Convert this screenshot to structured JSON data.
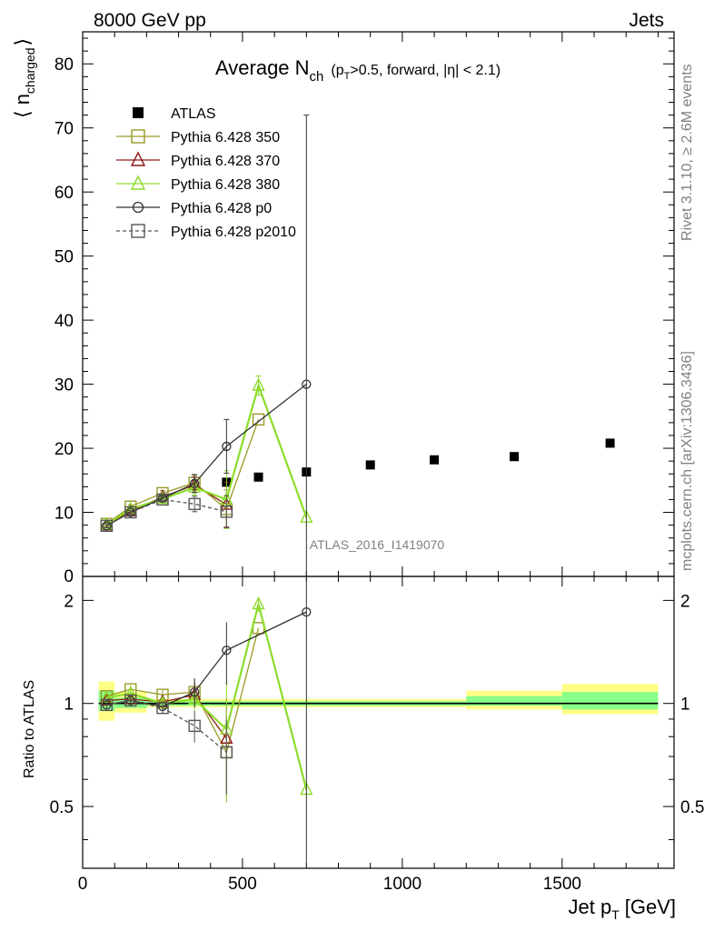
{
  "header": {
    "left": "8000 GeV pp",
    "right": "Jets",
    "side_top": "Rivet 3.1.10, ≥ 2.6M events",
    "side_bottom": "mcplots.cern.ch [arXiv:1306.3436]"
  },
  "chart_data": {
    "type": "scatter",
    "title": "Average N",
    "title_sub": "ch",
    "title_suffix": "(p",
    "title_suffix_sub": "T",
    "title_suffix_rest": ">0.5, forward, |η| < 2.1)",
    "analysis_label": "ATLAS_2016_I1419070",
    "ylabel_main": "⟨ n",
    "ylabel_main_sub": "charged",
    "ylabel_main_close": "⟩",
    "ylabel_ratio": "Ratio to ATLAS",
    "xlabel": "Jet p",
    "xlabel_sub": "T",
    "xlabel_unit": "[GeV]",
    "xlim": [
      0,
      1850
    ],
    "ylim_main": [
      0,
      85
    ],
    "ylim_ratio": [
      0.33,
      2.35
    ],
    "x_ticks": [
      "0",
      "500",
      "1000",
      "1500"
    ],
    "y_ticks_main": [
      "0",
      "10",
      "20",
      "30",
      "40",
      "50",
      "60",
      "70",
      "80"
    ],
    "y_ticks_ratio": [
      "0.5",
      "1",
      "2"
    ],
    "bands": [
      {
        "x0": 50,
        "x1": 100,
        "yellow": [
          0.89,
          1.16
        ],
        "green": [
          0.95,
          1.09
        ]
      },
      {
        "x0": 100,
        "x1": 200,
        "yellow": [
          0.94,
          1.08
        ],
        "green": [
          0.97,
          1.04
        ]
      },
      {
        "x0": 200,
        "x1": 1200,
        "yellow": [
          0.975,
          1.03
        ],
        "green": [
          0.985,
          1.015
        ]
      },
      {
        "x0": 1200,
        "x1": 1500,
        "yellow": [
          0.96,
          1.09
        ],
        "green": [
          0.985,
          1.05
        ]
      },
      {
        "x0": 1500,
        "x1": 1800,
        "yellow": [
          0.93,
          1.14
        ],
        "green": [
          0.96,
          1.08
        ]
      }
    ],
    "series": [
      {
        "name": "ATLAS",
        "marker": "filled-square",
        "color": "#000000",
        "line": "none",
        "x": [
          450,
          550,
          700,
          900,
          1100,
          1350,
          1650
        ],
        "y": [
          14.7,
          15.5,
          16.3,
          17.4,
          18.2,
          18.7,
          20.8
        ]
      },
      {
        "name": "Pythia 6.428 350",
        "marker": "open-square",
        "color": "#9a9a28",
        "line": "solid",
        "x": [
          75,
          150,
          250,
          350,
          450,
          550
        ],
        "y": [
          8.2,
          10.9,
          13.0,
          14.6,
          10.5,
          24.5
        ],
        "ratio": [
          1.05,
          1.1,
          1.06,
          1.08,
          0.72,
          1.66
        ],
        "err": [
          0.3,
          0.3,
          0.4,
          1.2,
          3.0,
          0
        ]
      },
      {
        "name": "Pythia 6.428 370",
        "marker": "open-triangle",
        "color": "#8b1a1a",
        "line": "solid",
        "x": [
          75,
          150,
          250,
          350,
          450
        ],
        "y": [
          8.0,
          10.2,
          12.4,
          14.3,
          11.2
        ],
        "ratio": [
          1.02,
          1.03,
          1.01,
          1.06,
          0.79
        ],
        "err": [
          0.3,
          0.3,
          0.3,
          1.2,
          3.5
        ]
      },
      {
        "name": "Pythia 6.428 380",
        "marker": "open-triangle",
        "color": "#8ddc2a",
        "line": "solid",
        "x": [
          75,
          150,
          250,
          350,
          450,
          550,
          700
        ],
        "y": [
          8.1,
          10.5,
          12.1,
          13.9,
          12.0,
          29.8,
          9.2
        ],
        "ratio": [
          1.04,
          1.07,
          1.0,
          1.03,
          0.84,
          1.95,
          0.56
        ],
        "err": [
          0.3,
          0.3,
          0.4,
          1.2,
          4.5,
          1.5,
          0
        ]
      },
      {
        "name": "Pythia 6.428 p0",
        "marker": "open-circle",
        "color": "#333333",
        "line": "solid",
        "x": [
          75,
          150,
          250,
          350,
          450,
          700
        ],
        "y": [
          7.9,
          10.0,
          12.2,
          14.5,
          20.3,
          30.0
        ],
        "ratio": [
          0.99,
          1.02,
          0.98,
          1.08,
          1.43,
          1.85
        ],
        "err": [
          0.3,
          0.3,
          0.4,
          1.4,
          4.2,
          42.0
        ]
      },
      {
        "name": "Pythia 6.428 p2010",
        "marker": "open-square",
        "color": "#555555",
        "line": "dashed",
        "x": [
          75,
          150,
          250,
          350,
          450
        ],
        "y": [
          7.9,
          10.0,
          12.0,
          11.3,
          10.1
        ],
        "ratio": [
          0.99,
          1.02,
          0.97,
          0.86,
          0.72
        ],
        "err": [
          0.3,
          0.3,
          0.4,
          1.2,
          2.5
        ]
      }
    ]
  }
}
